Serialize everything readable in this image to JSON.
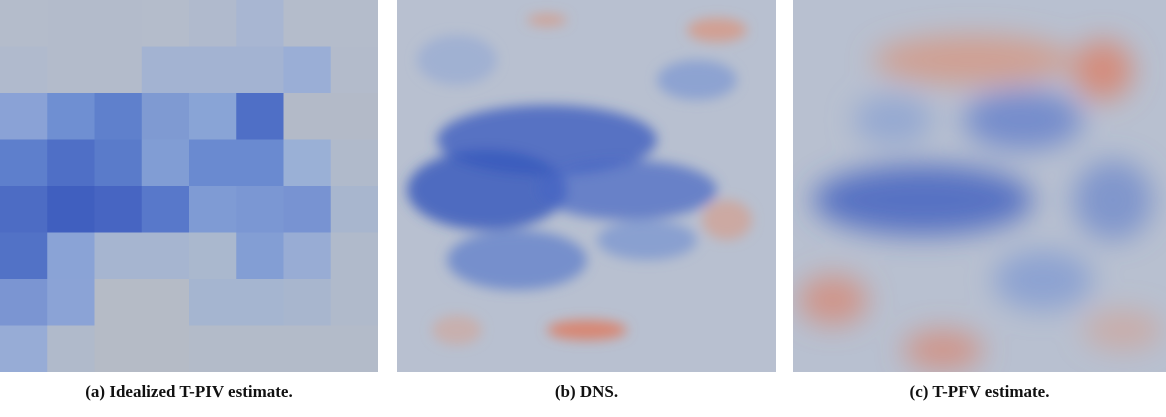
{
  "panels": [
    {
      "caption": "(a) Idealized T-PIV estimate."
    },
    {
      "caption": "(b) DNS."
    },
    {
      "caption": "(c) T-PFV estimate."
    }
  ]
}
